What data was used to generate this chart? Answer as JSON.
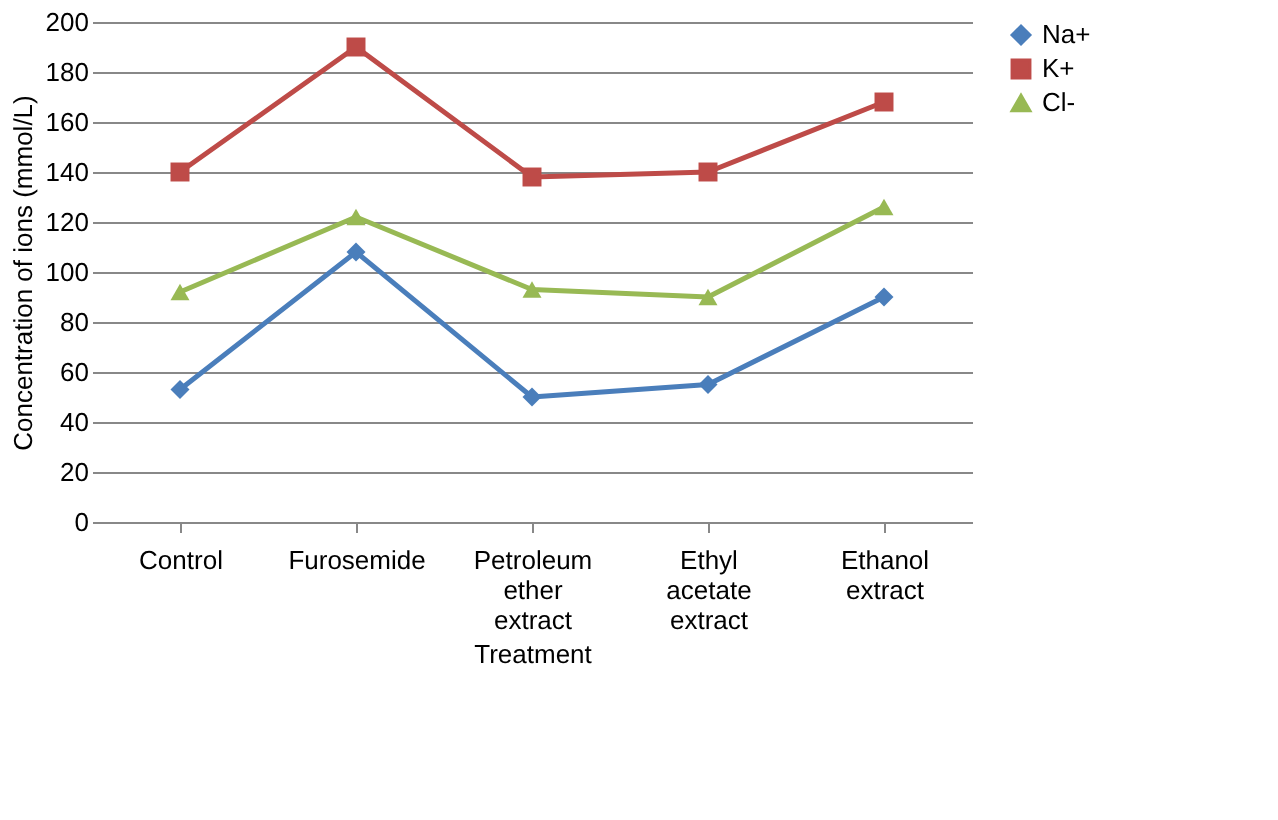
{
  "chart_data": {
    "type": "line",
    "xlabel": "Treatment",
    "ylabel": "Concentration of ions (mmol/L)",
    "categories": [
      "Control",
      "Furosemide",
      "Petroleum ether extract",
      "Ethyl acetate extract",
      "Ethanol extract"
    ],
    "series": [
      {
        "name": "Na+",
        "color": "#4a7ebb",
        "marker": "diamond",
        "values": [
          53,
          108,
          50,
          55,
          90
        ]
      },
      {
        "name": "K+",
        "color": "#be4b48",
        "marker": "square",
        "values": [
          140,
          190,
          138,
          140,
          168
        ]
      },
      {
        "name": "Cl-",
        "color": "#98b954",
        "marker": "triangle",
        "values": [
          92,
          122,
          93,
          90,
          126
        ]
      }
    ],
    "ylim": [
      0,
      200
    ],
    "yticks": [
      0,
      20,
      40,
      60,
      80,
      100,
      120,
      140,
      160,
      180,
      200
    ],
    "grid": "y",
    "legend": "right",
    "line_style": "solid"
  }
}
